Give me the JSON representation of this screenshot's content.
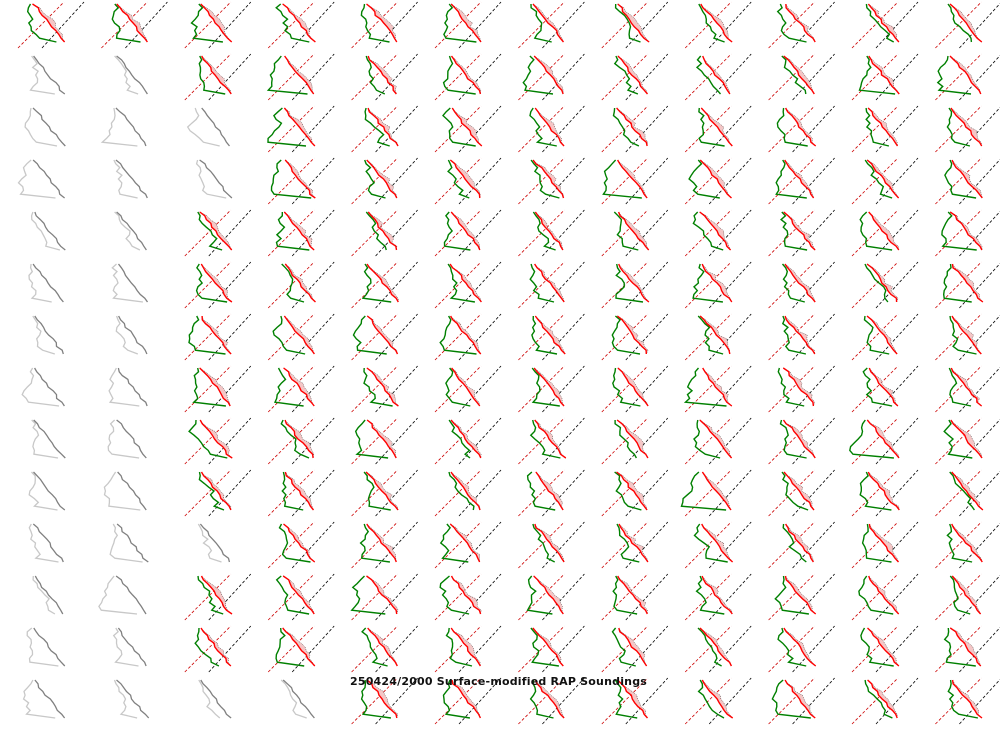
{
  "chart_data": {
    "type": "sounding-grid",
    "title": "250424/2000 Surface-modified RAP Soundings",
    "rows": 14,
    "columns": 12,
    "missing_cells_per_row": [
      0,
      2,
      3,
      3,
      2,
      2,
      2,
      2,
      2,
      2,
      3,
      2,
      2,
      4
    ],
    "colors": {
      "temperature": "#ff0000",
      "dewpoint": "#008000",
      "cape_fill": "#f4c6c6",
      "dry_adiabat": "#000000",
      "moist_reference": "#cc0000",
      "missing_outer": "#808080",
      "missing_inner": "#c8c8c8"
    }
  }
}
